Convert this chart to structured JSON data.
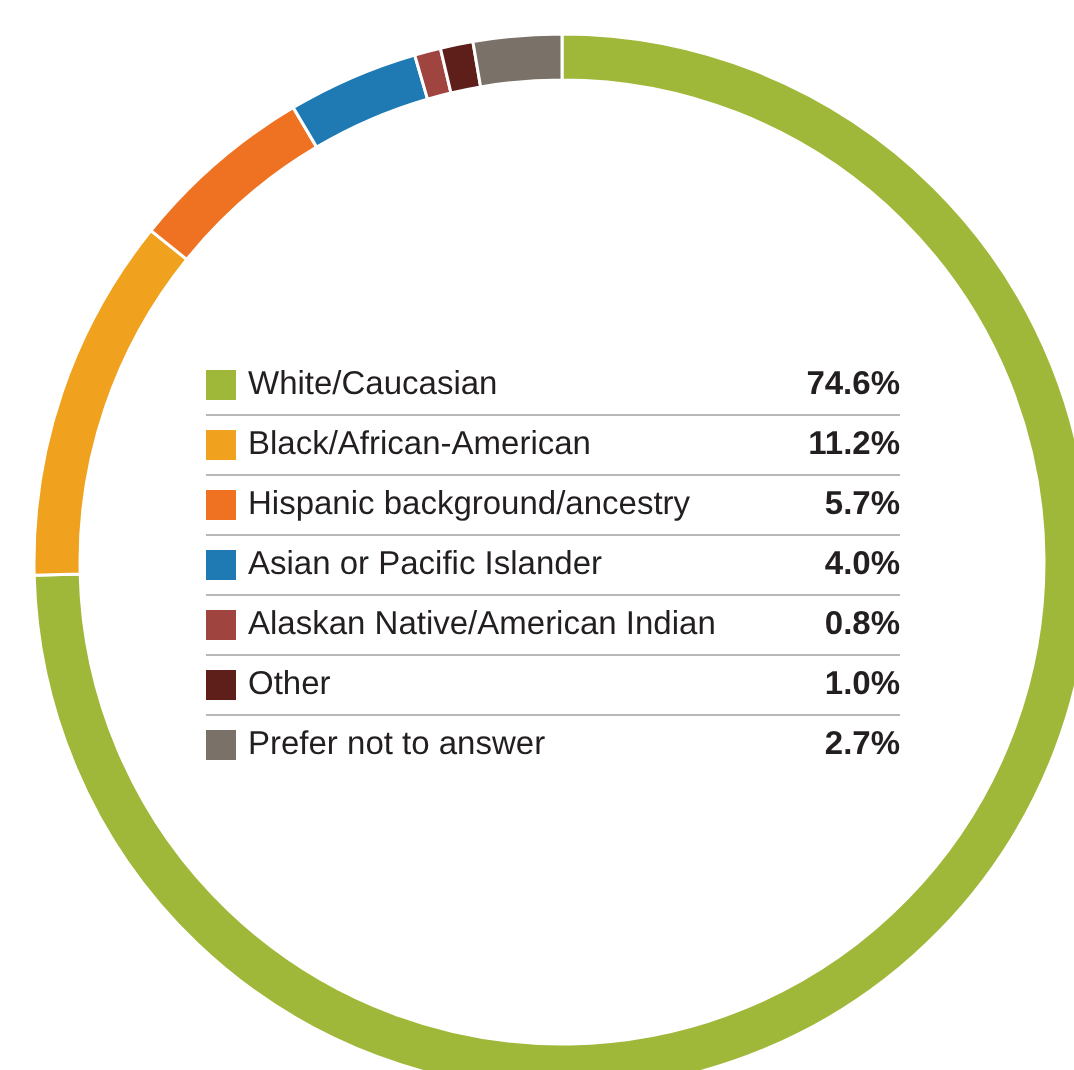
{
  "chart_data": {
    "type": "donut",
    "categories": [
      "White/Caucasian",
      "Black/African-American",
      "Hispanic background/ancestry",
      "Asian or Pacific Islander",
      "Alaskan Native/American Indian",
      "Other",
      "Prefer not to answer"
    ],
    "values": [
      74.6,
      11.2,
      5.7,
      4.0,
      0.8,
      1.0,
      2.7
    ],
    "value_labels": [
      "74.6%",
      "11.2%",
      "5.7%",
      "4.0%",
      "0.8%",
      "1.0%",
      "2.7%"
    ],
    "colors": [
      "#a0b83a",
      "#f0a11e",
      "#ef7223",
      "#1f7ab3",
      "#a0443f",
      "#5e1f1b",
      "#7a7168"
    ],
    "legend": "center"
  }
}
